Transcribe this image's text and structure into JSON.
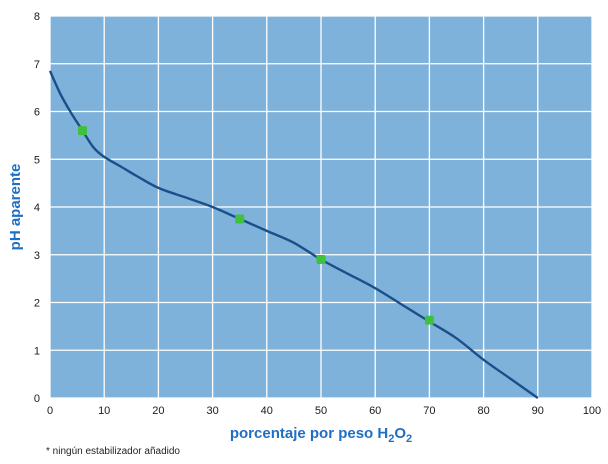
{
  "chart_data": {
    "type": "line",
    "title": "",
    "xlabel_main": "porcentaje por peso H",
    "xlabel_sub1": "2",
    "xlabel_mid": "O",
    "xlabel_sub2": "2",
    "ylabel": "pH aparente",
    "xlim": [
      0,
      100
    ],
    "ylim": [
      0,
      8
    ],
    "x_ticks": [
      0,
      10,
      20,
      30,
      40,
      50,
      60,
      70,
      80,
      90,
      100
    ],
    "y_ticks": [
      0,
      1,
      2,
      3,
      4,
      5,
      6,
      7,
      8
    ],
    "grid": true,
    "series": [
      {
        "color": "#1b4f8a",
        "x": [
          0,
          2,
          4,
          6,
          8,
          10,
          13,
          16,
          20,
          25,
          30,
          35,
          40,
          45,
          50,
          55,
          60,
          65,
          70,
          75,
          80,
          85,
          90
        ],
        "y": [
          6.85,
          6.35,
          5.95,
          5.6,
          5.25,
          5.05,
          4.85,
          4.65,
          4.4,
          4.2,
          4.0,
          3.75,
          3.5,
          3.25,
          2.9,
          2.6,
          2.3,
          1.95,
          1.6,
          1.25,
          0.8,
          0.4,
          0.0
        ]
      }
    ],
    "markers": {
      "color": "#3ec23e",
      "x": [
        6,
        35,
        50,
        70
      ],
      "y": [
        5.6,
        3.75,
        2.9,
        1.63
      ]
    },
    "colors": {
      "plot_background": "#7fb2da",
      "grid": "#ffffff",
      "axis_title": "#1f6fc4"
    }
  },
  "footnote": "* ningún estabilizador añadido"
}
